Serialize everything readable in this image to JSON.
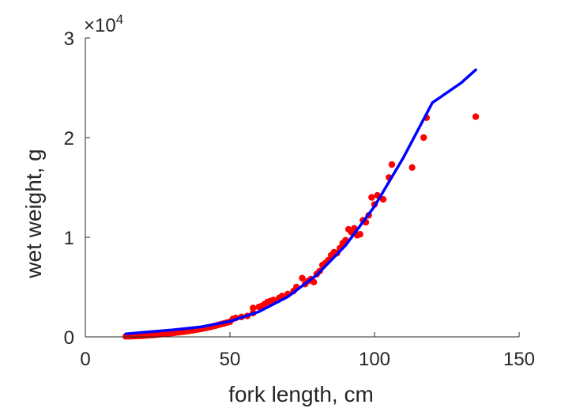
{
  "chart_data": {
    "type": "scatter",
    "title": "",
    "xlabel": "fork length, cm",
    "ylabel": "wet weight, g",
    "xlim": [
      0,
      150
    ],
    "ylim": [
      0,
      30000
    ],
    "xticks": [
      0,
      50,
      100,
      150
    ],
    "yticks": [
      0,
      10000,
      20000,
      30000
    ],
    "x_tick_labels": [
      "0",
      "50",
      "100",
      "150"
    ],
    "y_tick_labels": [
      "0",
      "1",
      "2",
      "3"
    ],
    "y_exponent_base": "×10",
    "y_exponent_power": "4",
    "grid": false,
    "legend": "none",
    "colors": {
      "points": "#ff0000",
      "curve": "#0000ff",
      "axis": "#262626"
    },
    "series": [
      {
        "kind": "scatter",
        "points": [
          [
            14,
            50
          ],
          [
            15,
            60
          ],
          [
            16,
            70
          ],
          [
            17,
            80
          ],
          [
            18,
            90
          ],
          [
            19,
            100
          ],
          [
            20,
            120
          ],
          [
            21,
            140
          ],
          [
            22,
            160
          ],
          [
            23,
            180
          ],
          [
            24,
            200
          ],
          [
            25,
            230
          ],
          [
            26,
            260
          ],
          [
            27,
            290
          ],
          [
            28,
            320
          ],
          [
            29,
            350
          ],
          [
            30,
            380
          ],
          [
            31,
            410
          ],
          [
            32,
            450
          ],
          [
            33,
            480
          ],
          [
            34,
            520
          ],
          [
            35,
            560
          ],
          [
            36,
            600
          ],
          [
            37,
            650
          ],
          [
            38,
            700
          ],
          [
            39,
            750
          ],
          [
            40,
            800
          ],
          [
            41,
            860
          ],
          [
            42,
            920
          ],
          [
            43,
            980
          ],
          [
            44,
            1050
          ],
          [
            45,
            1120
          ],
          [
            46,
            1200
          ],
          [
            47,
            1280
          ],
          [
            48,
            1350
          ],
          [
            49,
            1430
          ],
          [
            50,
            1520
          ],
          [
            51,
            1800
          ],
          [
            52,
            1900
          ],
          [
            54,
            2000
          ],
          [
            56,
            2100
          ],
          [
            58,
            2400
          ],
          [
            58,
            2900
          ],
          [
            60,
            3000
          ],
          [
            61,
            3100
          ],
          [
            62,
            3300
          ],
          [
            63,
            3500
          ],
          [
            64,
            3600
          ],
          [
            65,
            3700
          ],
          [
            67,
            3900
          ],
          [
            68,
            4100
          ],
          [
            70,
            4300
          ],
          [
            72,
            4600
          ],
          [
            73,
            5000
          ],
          [
            75,
            5900
          ],
          [
            76,
            5300
          ],
          [
            77,
            5600
          ],
          [
            78,
            5800
          ],
          [
            79,
            5500
          ],
          [
            80,
            6300
          ],
          [
            81,
            6600
          ],
          [
            82,
            7200
          ],
          [
            83,
            7400
          ],
          [
            84,
            7700
          ],
          [
            85,
            8200
          ],
          [
            86,
            8500
          ],
          [
            87,
            8400
          ],
          [
            88,
            8900
          ],
          [
            89,
            9400
          ],
          [
            90,
            9700
          ],
          [
            91,
            10800
          ],
          [
            92,
            10500
          ],
          [
            93,
            10900
          ],
          [
            94,
            10200
          ],
          [
            95,
            10300
          ],
          [
            96,
            11700
          ],
          [
            97,
            11500
          ],
          [
            98,
            12200
          ],
          [
            99,
            14000
          ],
          [
            100,
            13300
          ],
          [
            101,
            14200
          ],
          [
            103,
            13800
          ],
          [
            105,
            16000
          ],
          [
            106,
            17300
          ],
          [
            113,
            17000
          ],
          [
            117,
            20000
          ],
          [
            118,
            22000
          ],
          [
            135,
            22100
          ]
        ]
      },
      {
        "kind": "line",
        "x": [
          14,
          20,
          30,
          40,
          50,
          60,
          70,
          80,
          90,
          100,
          110,
          120,
          130,
          135
        ],
        "y": [
          300,
          450,
          690,
          1000,
          1560,
          2520,
          4020,
          6200,
          9180,
          13100,
          18000,
          23500,
          25500,
          26800
        ]
      }
    ]
  }
}
